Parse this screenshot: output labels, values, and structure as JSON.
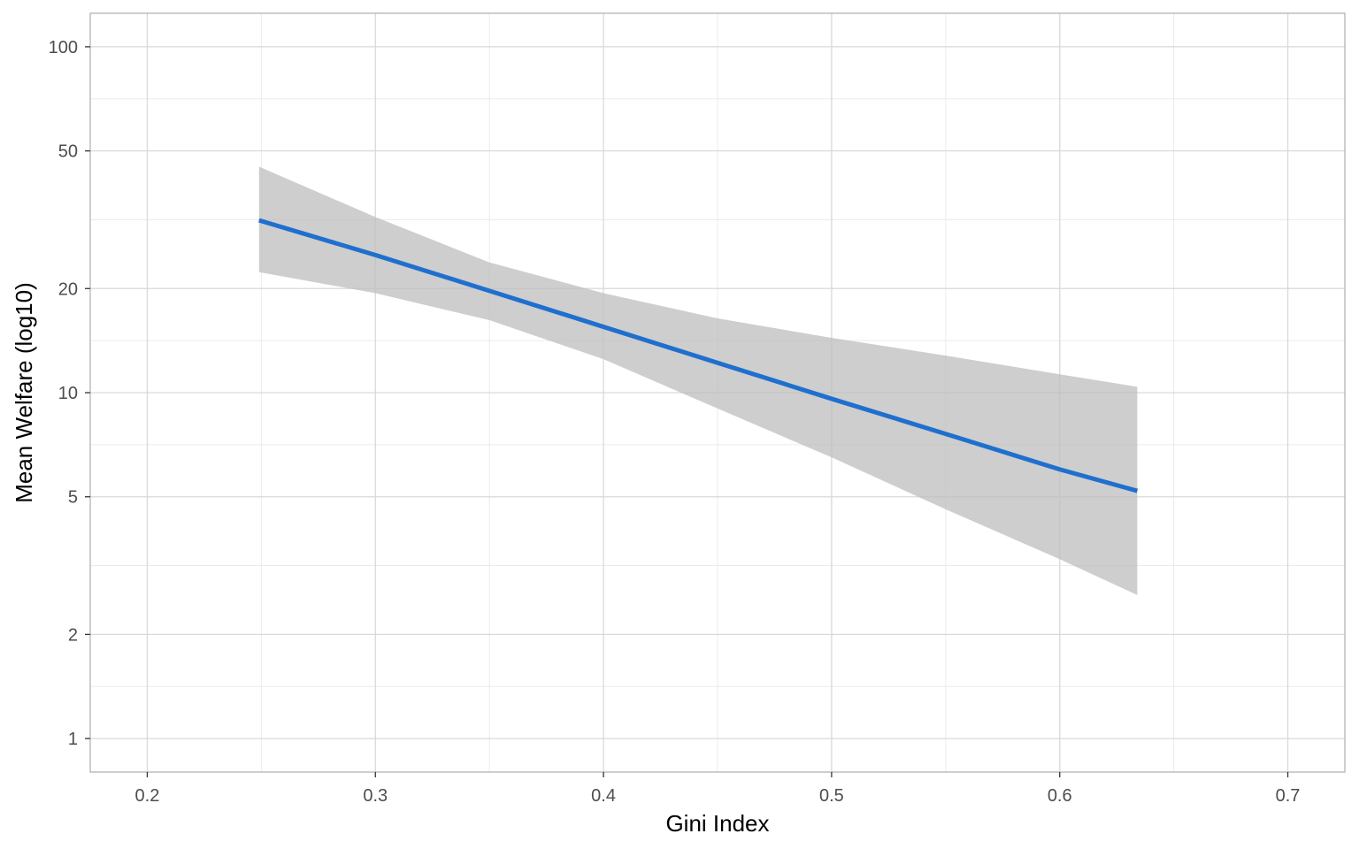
{
  "chart_data": {
    "type": "line",
    "title": "",
    "xlabel": "Gini Index",
    "ylabel": "Mean Welfare (log10)",
    "x_scale": "linear",
    "y_scale": "log10",
    "xlim": [
      0.175,
      0.725
    ],
    "ylim": [
      0.8,
      125
    ],
    "x_ticks": [
      0.2,
      0.3,
      0.4,
      0.5,
      0.6,
      0.7
    ],
    "x_tick_labels": [
      "0.2",
      "0.3",
      "0.4",
      "0.5",
      "0.6",
      "0.7"
    ],
    "x_minor_ticks": [
      0.25,
      0.35,
      0.45,
      0.55,
      0.65
    ],
    "y_ticks": [
      1,
      2,
      5,
      10,
      20,
      50,
      100
    ],
    "y_tick_labels": [
      "1",
      "2",
      "5",
      "10",
      "20",
      "50",
      "100"
    ],
    "y_minor_ticks": [
      1.4142,
      3.1623,
      7.0711,
      14.1421,
      31.6228,
      70.7107
    ],
    "grid": true,
    "legend": "none",
    "series": [
      {
        "kind": "fit",
        "color": "#1f6fcf",
        "x": [
          0.249,
          0.3,
          0.35,
          0.4,
          0.45,
          0.5,
          0.55,
          0.6,
          0.634
        ],
        "y": [
          31.5,
          25.0,
          19.7,
          15.5,
          12.2,
          9.6,
          7.6,
          6.0,
          5.2
        ]
      }
    ],
    "confidence_band": {
      "color": "#bebebe",
      "x": [
        0.249,
        0.3,
        0.35,
        0.4,
        0.45,
        0.5,
        0.55,
        0.6,
        0.634
      ],
      "lower": [
        22.3,
        19.4,
        16.2,
        12.5,
        9.0,
        6.5,
        4.6,
        3.3,
        2.6
      ],
      "upper": [
        45.0,
        32.2,
        23.8,
        19.4,
        16.4,
        14.4,
        12.8,
        11.3,
        10.4
      ]
    }
  }
}
